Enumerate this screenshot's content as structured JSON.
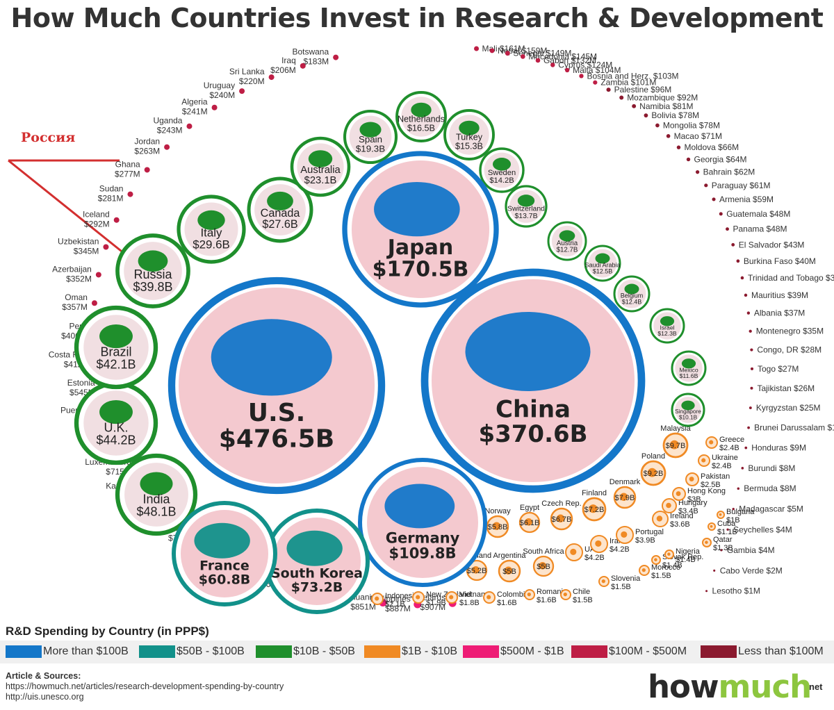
{
  "title": "How Much Countries Invest in Research & Development",
  "annotation": "Россия",
  "colors": {
    "blue": "#1477c9",
    "teal": "#12918a",
    "green": "#1f8f2c",
    "orange": "#f08a24",
    "pink": "#ee1c75",
    "crimson": "#be1e45",
    "maroon": "#8b1a2f",
    "annotation": "#d32f2f"
  },
  "chart_data": {
    "type": "bubble",
    "title": "How Much Countries Invest in Research & Development",
    "legend": {
      "title": "R&D Spending by Country (in PPP$)",
      "items": [
        {
          "label": "More than $100B",
          "color": "#1477c9"
        },
        {
          "label": "$50B - $100B",
          "color": "#12918a"
        },
        {
          "label": "$10B - $50B",
          "color": "#1f8f2c"
        },
        {
          "label": "$1B - $10B",
          "color": "#f08a24"
        },
        {
          "label": "$500M - $1B",
          "color": "#ee1c75"
        },
        {
          "label": "$100M - $500M",
          "color": "#be1e45"
        },
        {
          "label": "Less than $100M",
          "color": "#8b1a2f"
        }
      ]
    },
    "big": [
      {
        "name": "U.S.",
        "value": "$476.5B",
        "tier": "blue"
      },
      {
        "name": "China",
        "value": "$370.6B",
        "tier": "blue"
      },
      {
        "name": "Japan",
        "value": "$170.5B",
        "tier": "blue"
      },
      {
        "name": "Germany",
        "value": "$109.8B",
        "tier": "blue"
      },
      {
        "name": "South Korea",
        "value": "$73.2B",
        "tier": "teal"
      },
      {
        "name": "France",
        "value": "$60.8B",
        "tier": "teal"
      }
    ],
    "medium": [
      {
        "name": "India",
        "value": "$48.1B",
        "tier": "green"
      },
      {
        "name": "U.K.",
        "value": "$44.2B",
        "tier": "green"
      },
      {
        "name": "Brazil",
        "value": "$42.1B",
        "tier": "green"
      },
      {
        "name": "Russia",
        "value": "$39.8B",
        "tier": "green"
      },
      {
        "name": "Italy",
        "value": "$29.6B",
        "tier": "green"
      },
      {
        "name": "Canada",
        "value": "$27.6B",
        "tier": "green"
      },
      {
        "name": "Australia",
        "value": "$23.1B",
        "tier": "green"
      },
      {
        "name": "Spain",
        "value": "$19.3B",
        "tier": "green"
      },
      {
        "name": "Netherlands",
        "value": "$16.5B",
        "tier": "green"
      },
      {
        "name": "Turkey",
        "value": "$15.3B",
        "tier": "green"
      },
      {
        "name": "Sweden",
        "value": "$14.2B",
        "tier": "green"
      },
      {
        "name": "Switzerland",
        "value": "$13.7B",
        "tier": "green"
      },
      {
        "name": "Austria",
        "value": "$12.7B",
        "tier": "green"
      },
      {
        "name": "Saudi Arabia",
        "value": "$12.5B",
        "tier": "green"
      },
      {
        "name": "Belgium",
        "value": "$12.4B",
        "tier": "green"
      },
      {
        "name": "Israel",
        "value": "$12.3B",
        "tier": "green"
      },
      {
        "name": "Mexico",
        "value": "$11.6B",
        "tier": "green"
      },
      {
        "name": "Singapore",
        "value": "$10.1B",
        "tier": "green"
      }
    ],
    "small": [
      {
        "name": "Malaysia",
        "value": "$9.7B"
      },
      {
        "name": "Poland",
        "value": "$9.2B"
      },
      {
        "name": "Denmark",
        "value": "$7.9B"
      },
      {
        "name": "Finland",
        "value": "$7.2B"
      },
      {
        "name": "Czech Rep.",
        "value": "$6.7B"
      },
      {
        "name": "Egypt",
        "value": "$6.1B"
      },
      {
        "name": "Norway",
        "value": "$5.8B"
      },
      {
        "name": "Thailand",
        "value": "$5.2B"
      },
      {
        "name": "Argentina",
        "value": "$5B"
      },
      {
        "name": "South Africa",
        "value": "$5B"
      },
      {
        "name": "UAE",
        "value": "$4.2B"
      },
      {
        "name": "Iran",
        "value": "$4.2B"
      },
      {
        "name": "Portugal",
        "value": "$3.9B"
      },
      {
        "name": "Ireland",
        "value": "$3.6B"
      },
      {
        "name": "Hungary",
        "value": "$3.4B"
      },
      {
        "name": "Hong Kong",
        "value": "$3B"
      },
      {
        "name": "Pakistan",
        "value": "$2.5B"
      },
      {
        "name": "Ukraine",
        "value": "$2.4B"
      },
      {
        "name": "Greece",
        "value": "$2.4B"
      },
      {
        "name": "Indonesia",
        "value": "$2.1B"
      },
      {
        "name": "New Zealand",
        "value": "$1.9B"
      },
      {
        "name": "Vietnam",
        "value": "$1.8B"
      },
      {
        "name": "Colombia",
        "value": "$1.6B"
      },
      {
        "name": "Romania",
        "value": "$1.6B"
      },
      {
        "name": "Chile",
        "value": "$1.5B"
      },
      {
        "name": "Slovenia",
        "value": "$1.5B"
      },
      {
        "name": "Morocco",
        "value": "$1.5B"
      },
      {
        "name": "Slovak Rep.",
        "value": "$1.4B"
      },
      {
        "name": "Nigeria",
        "value": "$1.4B"
      },
      {
        "name": "Qatar",
        "value": "$1.3B"
      },
      {
        "name": "Cuba",
        "value": "$1.1B"
      },
      {
        "name": "Bulgaria",
        "value": "$1B"
      }
    ],
    "dots_left": [
      {
        "name": "Botswana",
        "value": "$183M"
      },
      {
        "name": "Iraq",
        "value": "$206M"
      },
      {
        "name": "Sri Lanka",
        "value": "$220M"
      },
      {
        "name": "Uruguay",
        "value": "$240M"
      },
      {
        "name": "Algeria",
        "value": "$241M"
      },
      {
        "name": "Uganda",
        "value": "$243M"
      },
      {
        "name": "Jordan",
        "value": "$263M"
      },
      {
        "name": "Ghana",
        "value": "$277M"
      },
      {
        "name": "Sudan",
        "value": "$281M"
      },
      {
        "name": "Iceland",
        "value": "$292M"
      },
      {
        "name": "Uzbekistan",
        "value": "$345M"
      },
      {
        "name": "Azerbaijan",
        "value": "$352M"
      },
      {
        "name": "Oman",
        "value": "$357M"
      },
      {
        "name": "Peru",
        "value": "$406M"
      },
      {
        "name": "Costa Rica",
        "value": "$412M"
      },
      {
        "name": "Estonia",
        "value": "$545M"
      },
      {
        "name": "Puerto Rico",
        "value": "$548M"
      },
      {
        "name": "Tanzania",
        "value": "$624M"
      },
      {
        "name": "Luxembourg",
        "value": "$715M"
      },
      {
        "name": "Kazakhstan",
        "value": "$718M"
      },
      {
        "name": "Croatia",
        "value": "$737M"
      },
      {
        "name": "Serbia",
        "value": "$758M"
      },
      {
        "name": "Ethiopia",
        "value": "$787M"
      },
      {
        "name": "Kenya",
        "value": "$788M"
      },
      {
        "name": "Ecuador",
        "value": "$806M"
      },
      {
        "name": "Tunisia",
        "value": "$828M"
      },
      {
        "name": "Kuwait",
        "value": "$832M"
      },
      {
        "name": "Lithuania",
        "value": "$851M"
      },
      {
        "name": "Philippines",
        "value": "$887M"
      },
      {
        "name": "Belarus",
        "value": "$907M"
      }
    ],
    "dots_right": [
      {
        "name": "Mali",
        "value": "$161M"
      },
      {
        "name": "Nepal",
        "value": "$159M"
      },
      {
        "name": "Senegal",
        "value": "$149M"
      },
      {
        "name": "Macedonia",
        "value": "$145M"
      },
      {
        "name": "Gabon",
        "value": "$132M"
      },
      {
        "name": "Cyprus",
        "value": "$124M"
      },
      {
        "name": "Malta",
        "value": "$104M"
      },
      {
        "name": "Bosnia and Herz.",
        "value": "$103M"
      },
      {
        "name": "Zambia",
        "value": "$101M"
      },
      {
        "name": "Palestine",
        "value": "$96M"
      },
      {
        "name": "Mozambique",
        "value": "$92M"
      },
      {
        "name": "Namibia",
        "value": "$81M"
      },
      {
        "name": "Bolivia",
        "value": "$78M"
      },
      {
        "name": "Mongolia",
        "value": "$78M"
      },
      {
        "name": "Macao",
        "value": "$71M"
      },
      {
        "name": "Moldova",
        "value": "$66M"
      },
      {
        "name": "Georgia",
        "value": "$64M"
      },
      {
        "name": "Bahrain",
        "value": "$62M"
      },
      {
        "name": "Paraguay",
        "value": "$61M"
      },
      {
        "name": "Armenia",
        "value": "$59M"
      },
      {
        "name": "Guatemala",
        "value": "$48M"
      },
      {
        "name": "Panama",
        "value": "$48M"
      },
      {
        "name": "El Salvador",
        "value": "$43M"
      },
      {
        "name": "Burkina Faso",
        "value": "$40M"
      },
      {
        "name": "Trinidad and Tobago",
        "value": "$39M"
      },
      {
        "name": "Mauritius",
        "value": "$39M"
      },
      {
        "name": "Albania",
        "value": "$37M"
      },
      {
        "name": "Montenegro",
        "value": "$35M"
      },
      {
        "name": "Congo, DR",
        "value": "$28M"
      },
      {
        "name": "Togo",
        "value": "$27M"
      },
      {
        "name": "Tajikistan",
        "value": "$26M"
      },
      {
        "name": "Kyrgyzstan",
        "value": "$25M"
      },
      {
        "name": "Brunei Darussalam",
        "value": "$10M"
      },
      {
        "name": "Honduras",
        "value": "$9M"
      },
      {
        "name": "Burundi",
        "value": "$8M"
      },
      {
        "name": "Bermuda",
        "value": "$8M"
      },
      {
        "name": "Madagascar",
        "value": "$5M"
      },
      {
        "name": "Seychelles",
        "value": "$4M"
      },
      {
        "name": "Gambia",
        "value": "$4M"
      },
      {
        "name": "Cabo Verde",
        "value": "$2M"
      },
      {
        "name": "Lesotho",
        "value": "$1M"
      }
    ]
  },
  "sources": {
    "heading": "Article & Sources:",
    "lines": [
      "https://howmuch.net/articles/research-development-spending-by-country",
      "http://uis.unesco.org"
    ]
  },
  "brand": {
    "part1": "how",
    "part2": "much",
    "suffix": "net"
  }
}
